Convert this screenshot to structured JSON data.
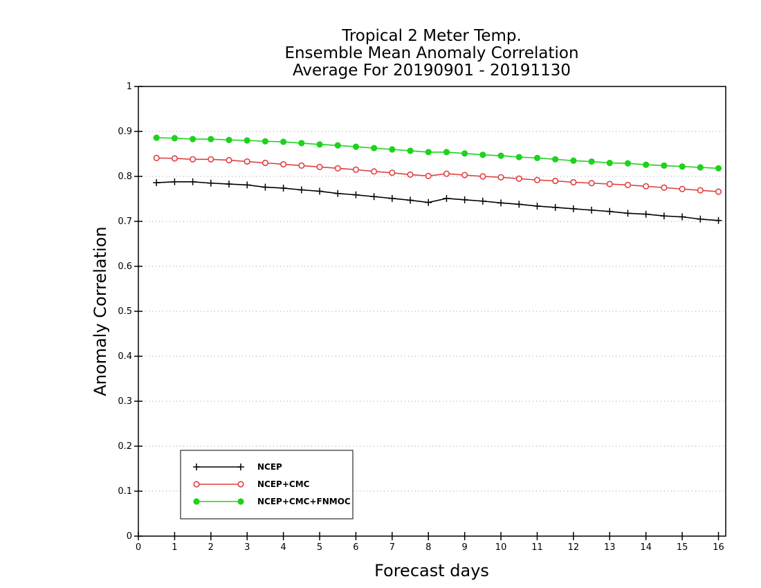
{
  "chart_data": {
    "type": "line",
    "title": [
      "Tropical 2 Meter Temp.",
      "Ensemble Mean Anomaly Correlation",
      "Average For 20190901 - 20191130"
    ],
    "xlabel": "Forecast days",
    "ylabel": "Anomaly Correlation",
    "xlim": [
      0,
      16.2
    ],
    "ylim": [
      0,
      1
    ],
    "xticks": [
      "0",
      "1",
      "2",
      "3",
      "4",
      "5",
      "6",
      "7",
      "8",
      "9",
      "10",
      "11",
      "12",
      "13",
      "14",
      "15",
      "16"
    ],
    "yticks": [
      "0",
      "0.1",
      "0.2",
      "0.3",
      "0.4",
      "0.5",
      "0.6",
      "0.7",
      "0.8",
      "0.9",
      "1"
    ],
    "grid": true,
    "legend_position": "bottom-left",
    "x": [
      0.5,
      1,
      1.5,
      2,
      2.5,
      3,
      3.5,
      4,
      4.5,
      5,
      5.5,
      6,
      6.5,
      7,
      7.5,
      8,
      8.5,
      9,
      9.5,
      10,
      10.5,
      11,
      11.5,
      12,
      12.5,
      13,
      13.5,
      14,
      14.5,
      15,
      15.5,
      16
    ],
    "series": [
      {
        "name": "NCEP",
        "color": "#000000",
        "marker": "plus",
        "values": [
          0.786,
          0.788,
          0.788,
          0.785,
          0.783,
          0.781,
          0.776,
          0.774,
          0.77,
          0.767,
          0.762,
          0.759,
          0.755,
          0.751,
          0.747,
          0.742,
          0.751,
          0.748,
          0.745,
          0.741,
          0.738,
          0.734,
          0.731,
          0.728,
          0.725,
          0.722,
          0.718,
          0.716,
          0.712,
          0.71,
          0.705,
          0.702
        ]
      },
      {
        "name": "NCEP+CMC",
        "color": "#e04040",
        "marker": "open-circle",
        "values": [
          0.841,
          0.84,
          0.838,
          0.838,
          0.836,
          0.833,
          0.83,
          0.827,
          0.824,
          0.821,
          0.818,
          0.815,
          0.811,
          0.808,
          0.804,
          0.801,
          0.806,
          0.803,
          0.8,
          0.798,
          0.795,
          0.792,
          0.79,
          0.787,
          0.785,
          0.783,
          0.781,
          0.778,
          0.775,
          0.772,
          0.769,
          0.766
        ]
      },
      {
        "name": "NCEP+CMC+FNMOC",
        "color": "#1ed21e",
        "marker": "filled-circle",
        "values": [
          0.886,
          0.885,
          0.883,
          0.883,
          0.881,
          0.88,
          0.878,
          0.877,
          0.874,
          0.871,
          0.869,
          0.866,
          0.863,
          0.86,
          0.857,
          0.854,
          0.854,
          0.851,
          0.848,
          0.846,
          0.843,
          0.841,
          0.838,
          0.835,
          0.833,
          0.83,
          0.829,
          0.826,
          0.824,
          0.822,
          0.82,
          0.818
        ]
      }
    ]
  }
}
